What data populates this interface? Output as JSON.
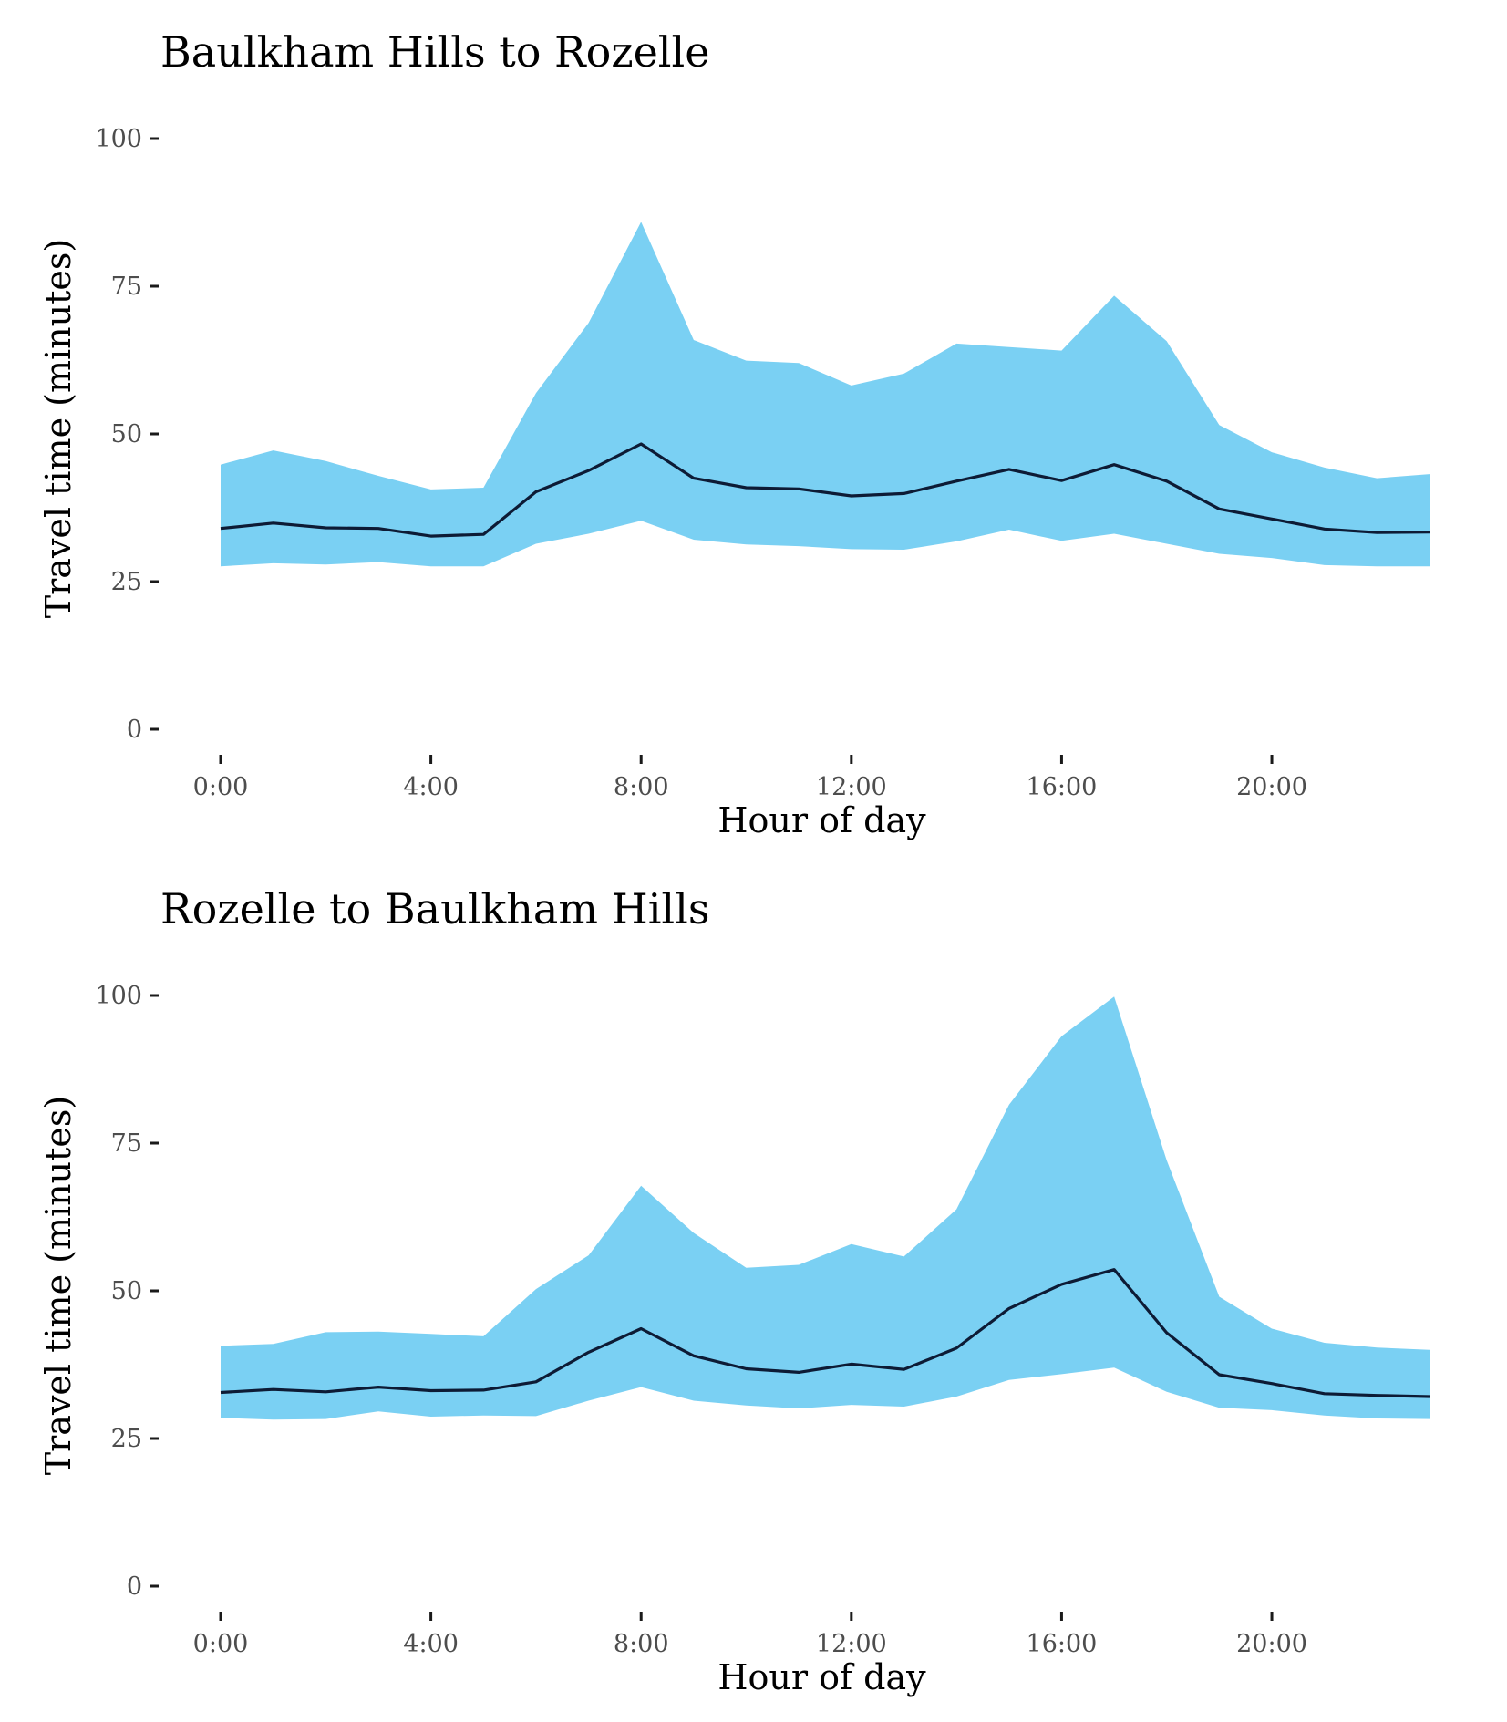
{
  "chart_data": [
    {
      "type": "area",
      "title": "Baulkham Hills to Rozelle",
      "xlabel": "Hour of day",
      "ylabel": "Travel time (minutes)",
      "xlim": [
        0,
        23
      ],
      "ylim": [
        0,
        100
      ],
      "xticks": [
        0,
        4,
        8,
        12,
        16,
        20
      ],
      "xtick_labels": [
        "0:00",
        "4:00",
        "8:00",
        "12:00",
        "16:00",
        "20:00"
      ],
      "yticks": [
        0,
        25,
        50,
        75,
        100
      ],
      "ytick_labels": [
        "0",
        "25",
        "50",
        "75",
        "100"
      ],
      "grid": false,
      "legend": "none",
      "x": [
        0,
        1,
        2,
        3,
        4,
        5,
        6,
        7,
        8,
        9,
        10,
        11,
        12,
        13,
        14,
        15,
        16,
        17,
        18,
        19,
        20,
        21,
        22,
        23
      ],
      "series": [
        {
          "role": "band-upper",
          "values": [
            44.8,
            47.2,
            45.4,
            42.9,
            40.6,
            40.9,
            56.9,
            68.8,
            85.9,
            65.9,
            62.4,
            62.0,
            58.2,
            60.2,
            65.3,
            64.7,
            64.1,
            73.4,
            65.7,
            51.5,
            46.9,
            44.3,
            42.5,
            43.2
          ]
        },
        {
          "role": "band-lower",
          "values": [
            27.6,
            28.1,
            27.9,
            28.3,
            27.6,
            27.6,
            31.4,
            33.1,
            35.3,
            32.1,
            31.3,
            31.0,
            30.5,
            30.4,
            31.8,
            33.8,
            31.9,
            33.1,
            31.4,
            29.7,
            29.0,
            27.8,
            27.6,
            27.6
          ]
        },
        {
          "role": "median",
          "values": [
            34.0,
            34.9,
            34.1,
            34.0,
            32.7,
            33.0,
            40.2,
            43.8,
            48.3,
            42.5,
            40.9,
            40.7,
            39.5,
            39.9,
            42.0,
            44.0,
            42.1,
            44.8,
            42.0,
            37.3,
            35.6,
            33.9,
            33.3,
            33.4
          ]
        }
      ],
      "colors": {
        "band": "#7ad0f3",
        "line": "#0d1b35",
        "axis": "#1a1a1a",
        "tick_text": "#4d4d4d"
      }
    },
    {
      "type": "area",
      "title": "Rozelle to Baulkham Hills",
      "xlabel": "Hour of day",
      "ylabel": "Travel time (minutes)",
      "xlim": [
        0,
        23
      ],
      "ylim": [
        0,
        100
      ],
      "xticks": [
        0,
        4,
        8,
        12,
        16,
        20
      ],
      "xtick_labels": [
        "0:00",
        "4:00",
        "8:00",
        "12:00",
        "16:00",
        "20:00"
      ],
      "yticks": [
        0,
        25,
        50,
        75,
        100
      ],
      "ytick_labels": [
        "0",
        "25",
        "50",
        "75",
        "100"
      ],
      "grid": false,
      "legend": "none",
      "x": [
        0,
        1,
        2,
        3,
        4,
        5,
        6,
        7,
        8,
        9,
        10,
        11,
        12,
        13,
        14,
        15,
        16,
        17,
        18,
        19,
        20,
        21,
        22,
        23
      ],
      "series": [
        {
          "role": "band-upper",
          "values": [
            40.7,
            41.0,
            43.0,
            43.1,
            42.7,
            42.3,
            50.3,
            56.0,
            67.8,
            59.8,
            53.9,
            54.4,
            57.9,
            55.8,
            63.8,
            81.5,
            93.1,
            99.8,
            72.1,
            49.0,
            43.6,
            41.2,
            40.4,
            40.0
          ]
        },
        {
          "role": "band-lower",
          "values": [
            28.5,
            28.2,
            28.3,
            29.6,
            28.7,
            28.9,
            28.8,
            31.4,
            33.7,
            31.4,
            30.6,
            30.1,
            30.7,
            30.4,
            32.1,
            34.9,
            35.9,
            37.0,
            32.9,
            30.2,
            29.8,
            28.9,
            28.4,
            28.3
          ]
        },
        {
          "role": "median",
          "values": [
            32.8,
            33.3,
            32.9,
            33.7,
            33.1,
            33.2,
            34.6,
            39.6,
            43.6,
            39.0,
            36.8,
            36.2,
            37.6,
            36.7,
            40.3,
            47.0,
            51.1,
            53.6,
            42.9,
            35.8,
            34.3,
            32.6,
            32.3,
            32.1
          ]
        }
      ],
      "colors": {
        "band": "#7ad0f3",
        "line": "#0d1b35",
        "axis": "#1a1a1a",
        "tick_text": "#4d4d4d"
      }
    }
  ]
}
